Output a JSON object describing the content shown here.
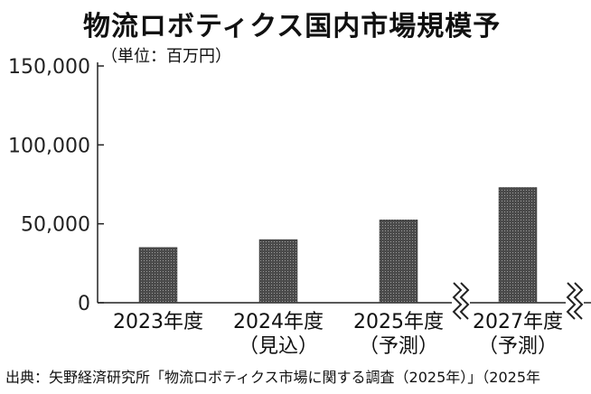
{
  "title": "物流ロボティクス国内市場規模予",
  "unit": "（単位：百万円）",
  "source": "出典：矢野経済研究所「物流ロボティクス市場に関する調査（2025年）」（2025年",
  "colors": {
    "bar": "#4a4a4a",
    "axis": "#222222"
  },
  "chart_data": {
    "type": "bar",
    "categories": [
      {
        "label": "2023年度",
        "sublabel": ""
      },
      {
        "label": "2024年度",
        "sublabel": "（見込）"
      },
      {
        "label": "2025年度",
        "sublabel": "（予測）"
      },
      {
        "label": "2027年度",
        "sublabel": "（予測）"
      }
    ],
    "values": [
      35000,
      40000,
      52500,
      73000
    ],
    "yticks": [
      "0",
      "50,000",
      "100,000",
      "150,000"
    ],
    "ylim": [
      0,
      150000
    ],
    "axis_break": true,
    "grid": false
  }
}
